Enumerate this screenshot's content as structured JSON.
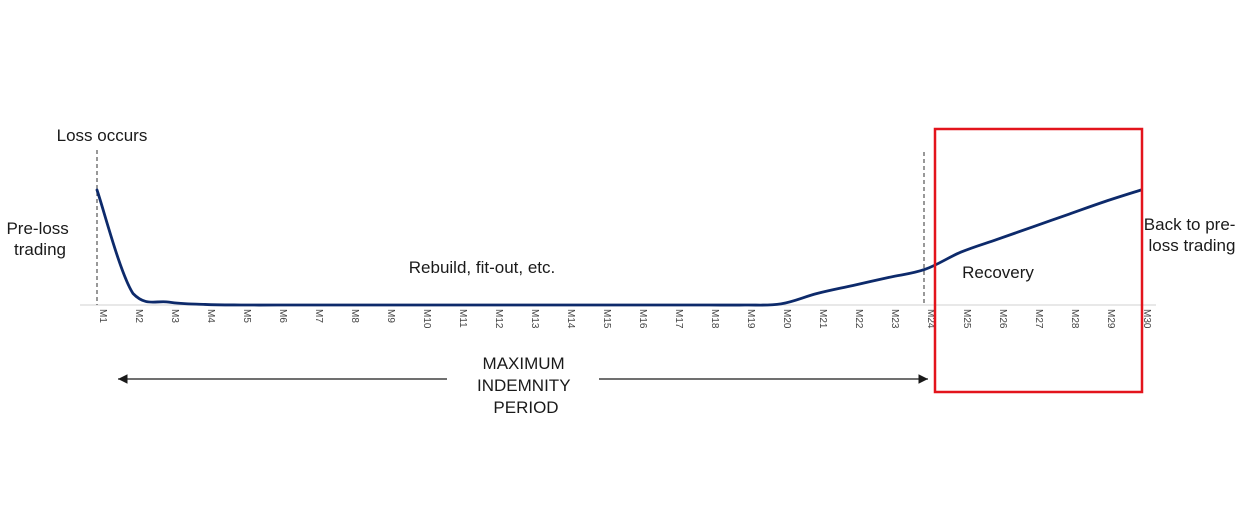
{
  "chart_data": {
    "type": "line",
    "categories": [
      "M1",
      "M2",
      "M3",
      "M4",
      "M5",
      "M6",
      "M7",
      "M8",
      "M9",
      "M10",
      "M11",
      "M12",
      "M13",
      "M14",
      "M15",
      "M16",
      "M17",
      "M18",
      "M19",
      "M20",
      "M21",
      "M22",
      "M23",
      "M24",
      "M25",
      "M26",
      "M27",
      "M28",
      "M29",
      "M30"
    ],
    "values": [
      1.0,
      0.1,
      0.025,
      0.005,
      0,
      0,
      0,
      0,
      0,
      0,
      0,
      0,
      0,
      0,
      0,
      0,
      0,
      0,
      0,
      0.01,
      0.1,
      0.17,
      0.24,
      0.31,
      0.46,
      0.57,
      0.68,
      0.79,
      0.9,
      1.0
    ],
    "ylim": [
      0,
      1
    ],
    "grid": false,
    "annotations": {
      "loss_occurs": "Loss occurs",
      "pre_loss": [
        "Pre-loss",
        "trading"
      ],
      "rebuild": "Rebuild, fit-out, etc.",
      "recovery": "Recovery",
      "back_to_pre_loss": [
        "Back to pre-",
        "loss trading"
      ],
      "indemnity_period": [
        "MAXIMUM",
        "INDEMNITY",
        "PERIOD"
      ]
    },
    "colors": {
      "line": "#0d2a6b",
      "highlight_box": "#e3141c",
      "baseline": "#d9d9d9",
      "marker": "#555555"
    }
  }
}
